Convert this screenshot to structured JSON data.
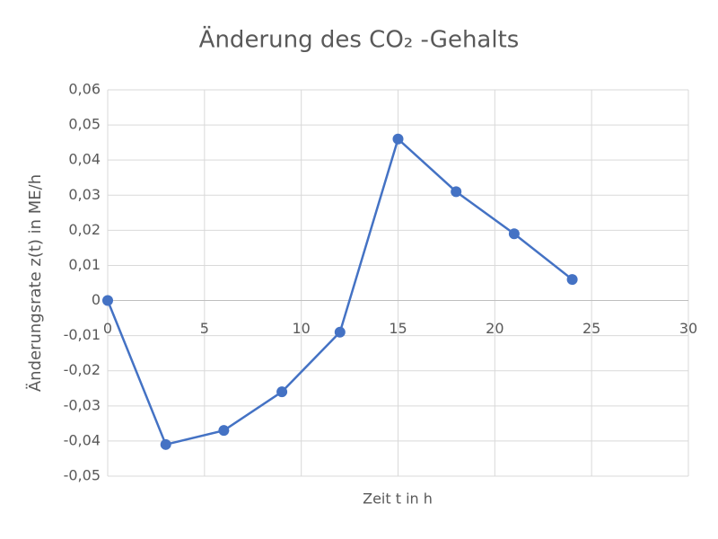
{
  "chart_data": {
    "type": "line",
    "title": "Änderung des CO₂ -Gehalts",
    "x_label": "Zeit t in h",
    "y_label": "Änderungsrate z(t) in ME/h",
    "x": [
      0,
      3,
      6,
      9,
      12,
      15,
      18,
      21,
      24
    ],
    "series": [
      {
        "name": "z(t)",
        "color": "#4472c4",
        "values": [
          0,
          -0.041,
          -0.037,
          -0.026,
          -0.009,
          0.046,
          0.031,
          0.019,
          0.006
        ]
      }
    ],
    "xlim": [
      0,
      30
    ],
    "xticks": [
      0,
      5,
      10,
      15,
      20,
      25,
      30
    ],
    "ylim": [
      -0.05,
      0.06
    ],
    "yticks": [
      {
        "value": -0.05,
        "label": "-0,05"
      },
      {
        "value": -0.04,
        "label": "-0,04"
      },
      {
        "value": -0.03,
        "label": "-0,03"
      },
      {
        "value": -0.02,
        "label": "-0,02"
      },
      {
        "value": -0.01,
        "label": "-0,01"
      },
      0,
      {
        "value": 0.01,
        "label": "0,01"
      },
      {
        "value": 0.02,
        "label": "0,02"
      },
      {
        "value": 0.03,
        "label": "0,03"
      },
      {
        "value": 0.04,
        "label": "0,04"
      },
      {
        "value": 0.05,
        "label": "0,05"
      },
      {
        "value": 0.06,
        "label": "0,06"
      }
    ],
    "grid": true
  }
}
